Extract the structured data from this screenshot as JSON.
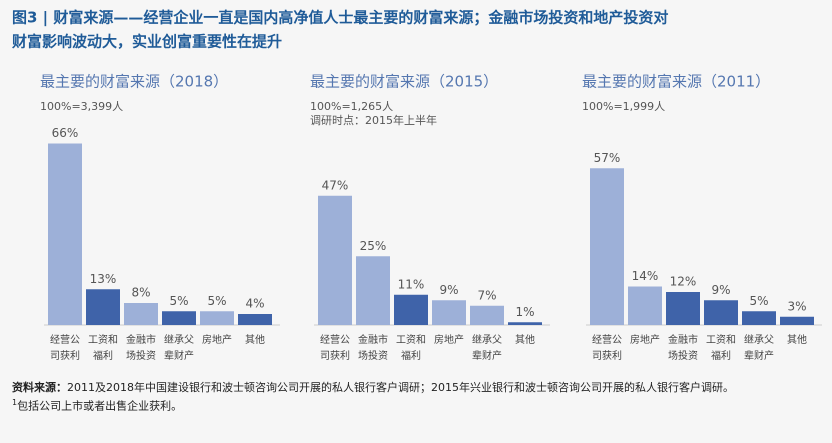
{
  "figure": {
    "title_lines": [
      "图3 | 财富来源——经营企业一直是国内高净值人士最主要的财富来源；金融市场投资和地产投资对",
      "财富影响波动大，实业创富重要性在提升"
    ],
    "source_label": "资料来源：",
    "source_text": "2011及2018年中国建设银行和波士顿咨询公司开展的私人银行客户调研；2015年兴业银行和波士顿咨询公司开展的私人银行客户调研。",
    "note_mark": "1",
    "note": "包括公司上市或者出售企业获利。"
  },
  "chart_data": [
    {
      "type": "bar",
      "title": "最主要的财富来源（2018）",
      "subtitle": [
        "100%=3,399人"
      ],
      "categories": [
        "经营公司获利",
        "工资和福利",
        "金融市场投资",
        "继承父辈财产",
        "房地产",
        "其他"
      ],
      "values": [
        66,
        13,
        8,
        5,
        5,
        4
      ],
      "value_labels": [
        "66%",
        "13%",
        "8%",
        "5%",
        "5%",
        "4%"
      ],
      "colors": [
        "#9db0d8",
        "#3f63a9",
        "#9db0d8",
        "#3f63a9",
        "#9db0d8",
        "#3f63a9"
      ]
    },
    {
      "type": "bar",
      "title": "最主要的财富来源（2015）",
      "subtitle": [
        "100%=1,265人",
        "调研时点：2015年上半年"
      ],
      "categories": [
        "经营公司获利",
        "金融市场投资",
        "工资和福利",
        "房地产",
        "继承父辈财产",
        "其他"
      ],
      "values": [
        47,
        25,
        11,
        9,
        7,
        1
      ],
      "value_labels": [
        "47%",
        "25%",
        "11%",
        "9%",
        "7%",
        "1%"
      ],
      "colors": [
        "#9db0d8",
        "#9db0d8",
        "#3f63a9",
        "#9db0d8",
        "#9db0d8",
        "#3f63a9"
      ]
    },
    {
      "type": "bar",
      "title": "最主要的财富来源（2011）",
      "subtitle": [
        "100%=1,999人"
      ],
      "categories": [
        "经营公司获利",
        "房地产",
        "金融市场投资",
        "工资和福利",
        "继承父辈财产",
        "其他"
      ],
      "values": [
        57,
        14,
        12,
        9,
        5,
        3
      ],
      "value_labels": [
        "57%",
        "14%",
        "12%",
        "9%",
        "5%",
        "3%"
      ],
      "colors": [
        "#9db0d8",
        "#9db0d8",
        "#3f63a9",
        "#3f63a9",
        "#3f63a9",
        "#3f63a9"
      ]
    }
  ]
}
